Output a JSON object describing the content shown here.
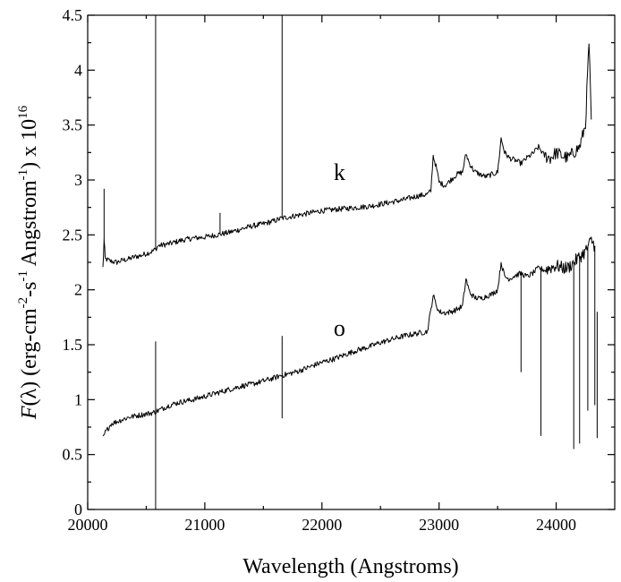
{
  "chart_data": {
    "type": "line",
    "title": "",
    "xlabel": "Wavelength (Angstroms)",
    "ylabel": {
      "prefix": "F",
      "paren_open": "(",
      "lambda": "λ",
      "paren_close": ")",
      "units_1": " (erg-cm",
      "exp_1": "-2",
      "units_2": "-s",
      "exp_2": "-1",
      "units_3": " Angstrom",
      "exp_3": "-1",
      "units_4": ") x 10",
      "exp_4": "16"
    },
    "xlim": [
      20000,
      24500
    ],
    "ylim": [
      0,
      4.5
    ],
    "xticks": [
      20000,
      21000,
      22000,
      23000,
      24000
    ],
    "xtick_labels": [
      "20000",
      "21000",
      "22000",
      "23000",
      "24000"
    ],
    "yticks": [
      0,
      0.5,
      1,
      1.5,
      2,
      2.5,
      3,
      3.5,
      4,
      4.5
    ],
    "ytick_labels": [
      "0",
      "0.5",
      "1",
      "1.5",
      "2",
      "2.5",
      "3",
      "3.5",
      "4",
      "4.5"
    ],
    "series": [
      {
        "name": "k",
        "label_pos": [
          22150,
          3.0
        ],
        "x": [
          20130,
          20140,
          20150,
          20200,
          20250,
          20300,
          20350,
          20400,
          20450,
          20500,
          20550,
          20580,
          20600,
          20700,
          20800,
          20900,
          21000,
          21100,
          21200,
          21300,
          21400,
          21500,
          21600,
          21650,
          21700,
          21800,
          21900,
          22000,
          22100,
          22200,
          22300,
          22400,
          22500,
          22600,
          22700,
          22800,
          22900,
          22930,
          22950,
          22980,
          23000,
          23050,
          23100,
          23150,
          23200,
          23230,
          23260,
          23300,
          23350,
          23400,
          23450,
          23500,
          23530,
          23560,
          23600,
          23650,
          23700,
          23750,
          23800,
          23850,
          23900,
          23950,
          24000,
          24050,
          24100,
          24150,
          24200,
          24250,
          24280,
          24300
        ],
        "y": [
          2.2,
          2.45,
          2.28,
          2.26,
          2.25,
          2.27,
          2.28,
          2.3,
          2.31,
          2.33,
          2.35,
          2.37,
          2.4,
          2.42,
          2.45,
          2.47,
          2.48,
          2.5,
          2.52,
          2.55,
          2.58,
          2.6,
          2.63,
          2.65,
          2.66,
          2.68,
          2.7,
          2.72,
          2.73,
          2.74,
          2.75,
          2.76,
          2.78,
          2.8,
          2.82,
          2.85,
          2.87,
          2.9,
          3.22,
          3.1,
          2.98,
          2.95,
          3.0,
          3.05,
          3.07,
          3.24,
          3.15,
          3.08,
          3.05,
          3.03,
          3.05,
          3.07,
          3.38,
          3.25,
          3.2,
          3.18,
          3.15,
          3.2,
          3.24,
          3.3,
          3.22,
          3.2,
          3.25,
          3.22,
          3.2,
          3.25,
          3.3,
          3.5,
          4.25,
          3.55
        ],
        "spikes": [
          [
            20580,
            4.5
          ],
          [
            21660,
            4.5
          ],
          [
            21130,
            2.7
          ],
          [
            20140,
            2.92
          ]
        ]
      },
      {
        "name": "o",
        "label_pos": [
          22150,
          1.58
        ],
        "x": [
          20130,
          20150,
          20200,
          20250,
          20300,
          20350,
          20400,
          20450,
          20500,
          20550,
          20580,
          20600,
          20700,
          20800,
          20900,
          21000,
          21100,
          21200,
          21300,
          21400,
          21500,
          21600,
          21650,
          21700,
          21800,
          21900,
          22000,
          22100,
          22200,
          22300,
          22400,
          22500,
          22600,
          22700,
          22800,
          22900,
          22950,
          22980,
          23000,
          23050,
          23100,
          23150,
          23200,
          23230,
          23260,
          23300,
          23350,
          23400,
          23450,
          23500,
          23530,
          23560,
          23600,
          23650,
          23700,
          23750,
          23800,
          23850,
          23900,
          23950,
          24000,
          24050,
          24100,
          24150,
          24200,
          24250,
          24300,
          24330
        ],
        "y": [
          0.65,
          0.7,
          0.78,
          0.8,
          0.82,
          0.84,
          0.85,
          0.86,
          0.87,
          0.88,
          0.89,
          0.9,
          0.95,
          0.98,
          1.0,
          1.03,
          1.06,
          1.09,
          1.12,
          1.14,
          1.17,
          1.2,
          1.22,
          1.23,
          1.26,
          1.3,
          1.34,
          1.37,
          1.41,
          1.45,
          1.48,
          1.52,
          1.55,
          1.58,
          1.6,
          1.62,
          1.95,
          1.85,
          1.8,
          1.79,
          1.8,
          1.82,
          1.85,
          2.1,
          1.98,
          1.93,
          1.92,
          1.94,
          1.96,
          2.0,
          2.25,
          2.12,
          2.1,
          2.13,
          2.15,
          2.12,
          2.15,
          2.2,
          2.18,
          2.2,
          2.22,
          2.2,
          2.2,
          2.25,
          2.3,
          2.35,
          2.45,
          2.4
        ],
        "spikes": [
          [
            20580,
            1.53
          ],
          [
            20580,
            0.0
          ],
          [
            21660,
            1.58
          ],
          [
            21660,
            0.83
          ],
          [
            23700,
            1.25
          ],
          [
            23870,
            0.67
          ],
          [
            24150,
            0.55
          ],
          [
            24200,
            0.6
          ],
          [
            24270,
            0.9
          ],
          [
            24330,
            0.95
          ],
          [
            24350,
            1.8
          ]
        ]
      }
    ]
  }
}
